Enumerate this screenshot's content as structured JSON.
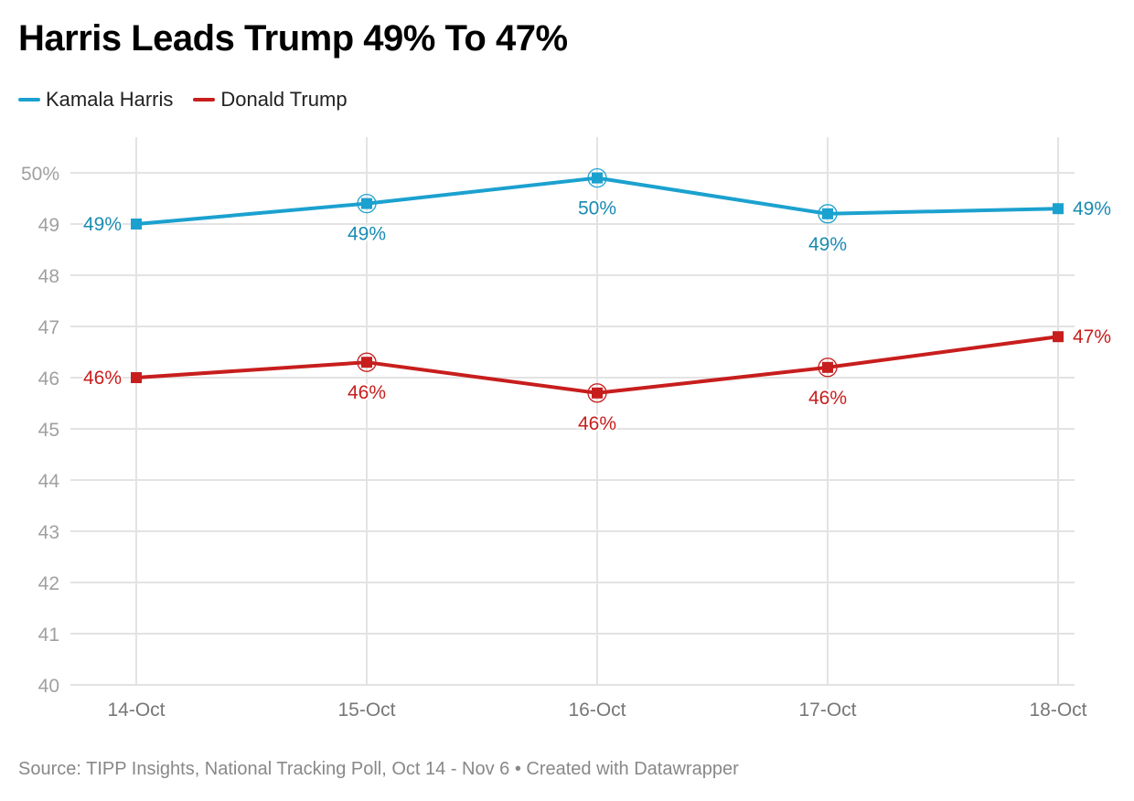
{
  "chart_data": {
    "type": "line",
    "title": "Harris Leads Trump 49% To 47%",
    "xlabel": "",
    "ylabel": "",
    "categories": [
      "14-Oct",
      "15-Oct",
      "16-Oct",
      "17-Oct",
      "18-Oct"
    ],
    "ylim": [
      40,
      50
    ],
    "yticks": [
      40,
      41,
      42,
      43,
      44,
      45,
      46,
      47,
      48,
      49,
      50
    ],
    "ytick_labels": [
      "40",
      "41",
      "42",
      "43",
      "44",
      "45",
      "46",
      "47",
      "48",
      "49",
      "50%"
    ],
    "grid": true,
    "legend_position": "top-left",
    "series": [
      {
        "name": "Kamala Harris",
        "color": "#1ba1cf",
        "label_color": "#1a8bb3",
        "values": [
          49.0,
          49.4,
          49.9,
          49.2,
          49.3
        ],
        "labels": [
          "49%",
          "49%",
          "50%",
          "49%",
          "49%"
        ],
        "label_positions": [
          "left",
          "below",
          "below",
          "below",
          "right"
        ],
        "highlighted": [
          false,
          true,
          true,
          true,
          false
        ]
      },
      {
        "name": "Donald Trump",
        "color": "#c71e1d",
        "label_color": "#c71e1d",
        "values": [
          46.0,
          46.3,
          45.7,
          46.2,
          46.8
        ],
        "labels": [
          "46%",
          "46%",
          "46%",
          "46%",
          "47%"
        ],
        "label_positions": [
          "left",
          "below",
          "below",
          "below",
          "right"
        ],
        "highlighted": [
          false,
          true,
          true,
          true,
          false
        ]
      }
    ],
    "source": "Source: TIPP Insights, National Tracking Poll, Oct 14 - Nov 6 • Created with Datawrapper"
  },
  "header": {
    "title": "Harris Leads Trump 49% To 47%"
  },
  "legend": {
    "items": [
      {
        "label": "Kamala Harris",
        "color": "#1ba1cf"
      },
      {
        "label": "Donald Trump",
        "color": "#c71e1d"
      }
    ]
  },
  "footer": {
    "text": "Source: TIPP Insights, National Tracking Poll, Oct 14 - Nov 6 • Created with Datawrapper"
  }
}
